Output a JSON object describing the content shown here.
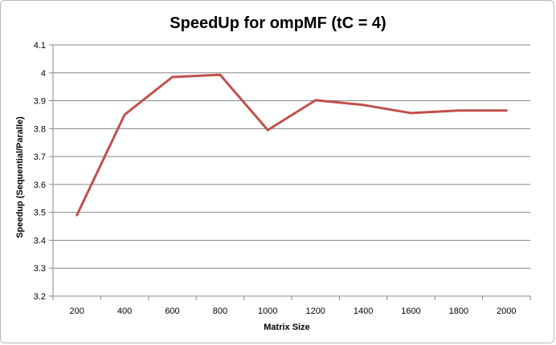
{
  "chart_data": {
    "type": "line",
    "title": "SpeedUp for ompMF (tC = 4)",
    "xlabel": "Matrix Size",
    "ylabel": "Speedup (Sequential/Paralle)",
    "categories": [
      "200",
      "400",
      "600",
      "800",
      "1000",
      "1200",
      "1400",
      "1600",
      "1800",
      "2000"
    ],
    "series": [
      {
        "values": [
          3.49,
          3.85,
          3.985,
          3.993,
          3.795,
          3.902,
          3.885,
          3.856,
          3.865,
          3.865
        ],
        "color": "#c0504d"
      }
    ],
    "ylim": [
      3.2,
      4.1
    ],
    "yticks": [
      "3.2",
      "3.3",
      "3.4",
      "3.5",
      "3.6",
      "3.7",
      "3.8",
      "3.9",
      "4",
      "4.1"
    ],
    "grid": "horizontal",
    "legend": "none"
  }
}
